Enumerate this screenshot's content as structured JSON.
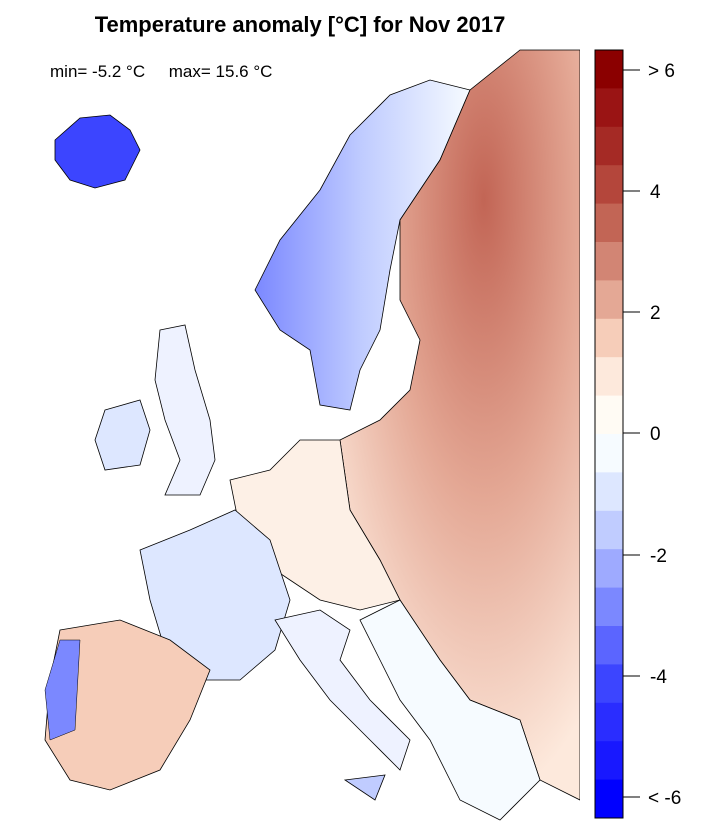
{
  "title": "Temperature anomaly [°C] for Nov 2017",
  "stats": {
    "min_label": "min= -5.2 °C",
    "max_label": "max= 15.6 °C"
  },
  "legend": {
    "tick_labels": [
      "> 6",
      "4",
      "2",
      "0",
      "-2",
      "-4",
      "< -6"
    ],
    "colors": [
      "#8b0000",
      "#9a1414",
      "#a52a25",
      "#b4463b",
      "#c26555",
      "#d28574",
      "#e4a895",
      "#f6cdb9",
      "#fde9dc",
      "#fffbf4",
      "#f6fbff",
      "#dde7ff",
      "#c0ccff",
      "#9eaaff",
      "#7b88ff",
      "#5b65ff",
      "#3c45ff",
      "#2a2dff",
      "#1818ff",
      "#0000ff"
    ]
  }
}
